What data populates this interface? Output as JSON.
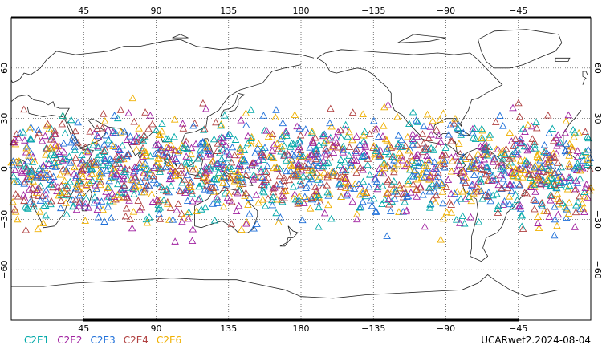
{
  "top_lon_ticks": [
    "45",
    "90",
    "135",
    "180",
    "−135",
    "−90",
    "−45"
  ],
  "bottom_lon_ticks": [
    "45",
    "90",
    "135",
    "180",
    "−135",
    "−90",
    "−45"
  ],
  "left_lat_ticks": [
    "60",
    "30",
    "0",
    "−30",
    "−60"
  ],
  "right_lat_ticks": [
    "60",
    "30",
    "0",
    "−30",
    "−60"
  ],
  "legend": [
    {
      "label": "C2E1",
      "color": "#00a8a8"
    },
    {
      "label": "C2E2",
      "color": "#a020a0"
    },
    {
      "label": "C2E3",
      "color": "#1e6fd9"
    },
    {
      "label": "C2E4",
      "color": "#b04040"
    },
    {
      "label": "C2E6",
      "color": "#f0b000"
    }
  ],
  "footer": "UCARwet2.2024-08-04",
  "marker_shape": "triangle-outline",
  "map_projection": "cylindrical-equidistant",
  "lon_range": [
    0,
    360
  ],
  "lat_range": [
    -90,
    90
  ],
  "grid": true
}
